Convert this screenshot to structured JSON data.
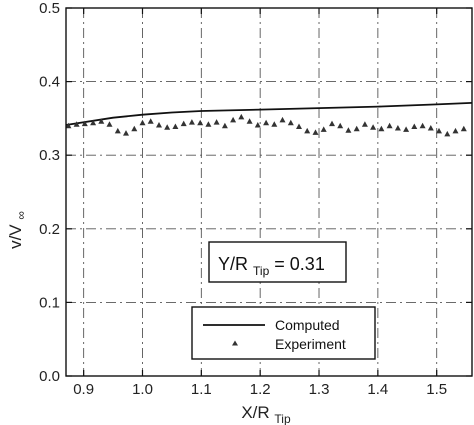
{
  "chart_data": {
    "type": "line",
    "xlabel": "X/R",
    "xlabel_sub": "Tip",
    "ylabel": "v/V",
    "ylabel_sub": "∞",
    "xlim": [
      0.87,
      1.56
    ],
    "ylim": [
      0.0,
      0.5
    ],
    "xticks": [
      0.9,
      1.0,
      1.1,
      1.2,
      1.3,
      1.4,
      1.5
    ],
    "xtick_labels": [
      "0.9",
      "1.0",
      "1.1",
      "1.2",
      "1.3",
      "1.4",
      "1.5"
    ],
    "yticks": [
      0.0,
      0.1,
      0.2,
      0.3,
      0.4,
      0.5
    ],
    "ytick_labels": [
      "0.0",
      "0.1",
      "0.2",
      "0.3",
      "0.4",
      "0.5"
    ],
    "grid": true,
    "annotation": {
      "main": "Y/R",
      "sub": "Tip",
      "rest": " = 0.31"
    },
    "legend_position": "bottom-center",
    "series": [
      {
        "name": "Computed",
        "style": "line",
        "color": "#111111",
        "x": [
          0.87,
          0.95,
          1.0,
          1.05,
          1.1,
          1.2,
          1.3,
          1.4,
          1.5,
          1.56
        ],
        "y": [
          0.341,
          0.351,
          0.355,
          0.358,
          0.36,
          0.362,
          0.364,
          0.366,
          0.369,
          0.371
        ]
      },
      {
        "name": "Experiment",
        "style": "triangle",
        "color": "#333333",
        "x": [
          0.874,
          0.888,
          0.902,
          0.916,
          0.93,
          0.944,
          0.958,
          0.972,
          0.986,
          1.0,
          1.014,
          1.028,
          1.042,
          1.056,
          1.07,
          1.084,
          1.098,
          1.112,
          1.126,
          1.14,
          1.154,
          1.168,
          1.182,
          1.196,
          1.21,
          1.224,
          1.238,
          1.252,
          1.266,
          1.28,
          1.294,
          1.308,
          1.322,
          1.336,
          1.35,
          1.364,
          1.378,
          1.392,
          1.406,
          1.42,
          1.434,
          1.448,
          1.462,
          1.476,
          1.49,
          1.504,
          1.518,
          1.532,
          1.546
        ],
        "y": [
          0.34,
          0.342,
          0.343,
          0.344,
          0.346,
          0.342,
          0.333,
          0.33,
          0.336,
          0.344,
          0.346,
          0.341,
          0.338,
          0.339,
          0.343,
          0.345,
          0.344,
          0.342,
          0.345,
          0.34,
          0.348,
          0.352,
          0.346,
          0.341,
          0.344,
          0.342,
          0.348,
          0.344,
          0.339,
          0.333,
          0.331,
          0.335,
          0.343,
          0.34,
          0.334,
          0.336,
          0.342,
          0.338,
          0.336,
          0.34,
          0.337,
          0.335,
          0.339,
          0.34,
          0.337,
          0.333,
          0.329,
          0.333,
          0.336
        ]
      }
    ]
  }
}
